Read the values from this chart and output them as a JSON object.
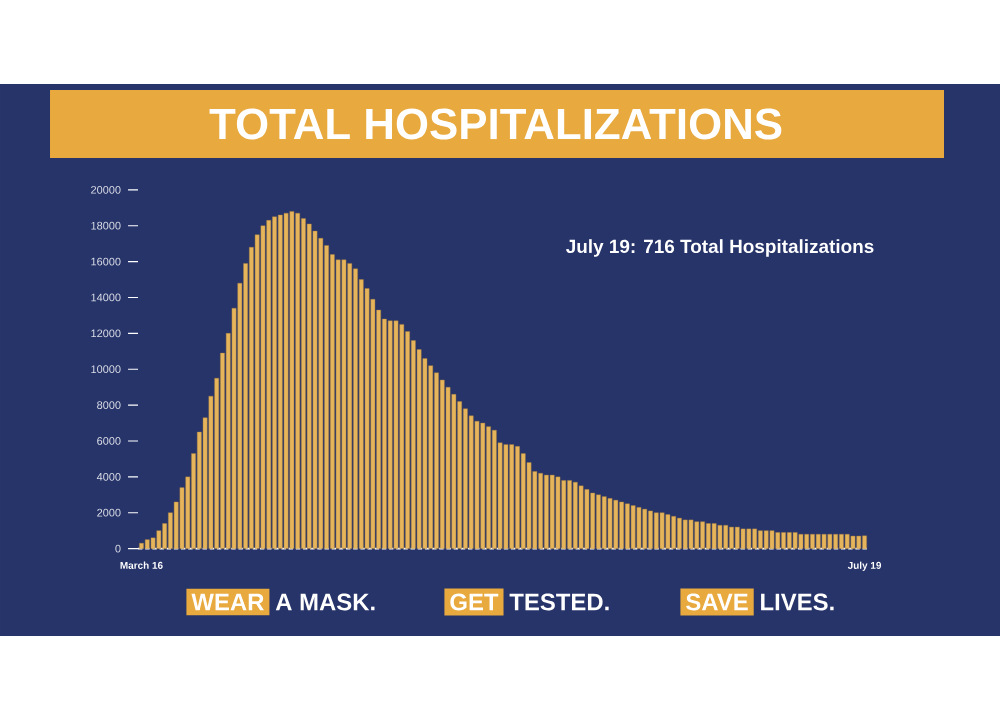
{
  "chart_data": {
    "type": "bar",
    "title": "TOTAL HOSPITALIZATIONS",
    "categories": [
      "March 16",
      null,
      null,
      null,
      null,
      null,
      null,
      null,
      null,
      null,
      null,
      null,
      null,
      null,
      null,
      null,
      null,
      null,
      null,
      null,
      null,
      null,
      null,
      null,
      null,
      null,
      null,
      null,
      null,
      null,
      null,
      null,
      null,
      null,
      null,
      null,
      null,
      null,
      null,
      null,
      null,
      null,
      null,
      null,
      null,
      null,
      null,
      null,
      null,
      null,
      null,
      null,
      null,
      null,
      null,
      null,
      null,
      null,
      null,
      null,
      null,
      null,
      null,
      null,
      null,
      null,
      null,
      null,
      null,
      null,
      null,
      null,
      null,
      null,
      null,
      null,
      null,
      null,
      null,
      null,
      null,
      null,
      null,
      null,
      null,
      null,
      null,
      null,
      null,
      null,
      null,
      null,
      null,
      null,
      null,
      null,
      null,
      null,
      null,
      null,
      null,
      null,
      null,
      null,
      null,
      null,
      null,
      null,
      null,
      null,
      null,
      null,
      null,
      null,
      null,
      null,
      null,
      null,
      null,
      null,
      null,
      null,
      null,
      null,
      null,
      "July 19"
    ],
    "values": [
      300,
      500,
      600,
      1000,
      1400,
      2000,
      2600,
      3400,
      4000,
      5300,
      6500,
      7300,
      8500,
      9500,
      10900,
      12000,
      13400,
      14800,
      15900,
      16800,
      17500,
      18000,
      18300,
      18500,
      18600,
      18700,
      18800,
      18700,
      18400,
      18100,
      17700,
      17300,
      16900,
      16400,
      16100,
      16100,
      15900,
      15600,
      15000,
      14500,
      13900,
      13300,
      12800,
      12700,
      12700,
      12500,
      12100,
      11600,
      11100,
      10600,
      10200,
      9800,
      9400,
      9000,
      8600,
      8200,
      7800,
      7400,
      7100,
      7000,
      6800,
      6600,
      5900,
      5800,
      5800,
      5700,
      5300,
      4800,
      4300,
      4200,
      4100,
      4100,
      4000,
      3800,
      3800,
      3700,
      3500,
      3300,
      3100,
      3000,
      2900,
      2800,
      2700,
      2600,
      2500,
      2400,
      2300,
      2200,
      2100,
      2000,
      2000,
      1900,
      1800,
      1700,
      1600,
      1600,
      1500,
      1500,
      1400,
      1400,
      1300,
      1300,
      1200,
      1200,
      1100,
      1100,
      1100,
      1000,
      1000,
      1000,
      900,
      900,
      900,
      900,
      800,
      800,
      800,
      800,
      800,
      800,
      800,
      800,
      800,
      700,
      700,
      716
    ],
    "color": "#e6b45a",
    "ylim": [
      0,
      20000
    ],
    "yticks": [
      0,
      2000,
      4000,
      6000,
      8000,
      10000,
      12000,
      14000,
      16000,
      18000,
      20000
    ],
    "annotations": [
      "July 19: 716 Total Hospitalizations",
      "WEAR",
      "A MASK.",
      "GET",
      "TESTED.",
      "SAVE",
      "LIVES."
    ]
  }
}
